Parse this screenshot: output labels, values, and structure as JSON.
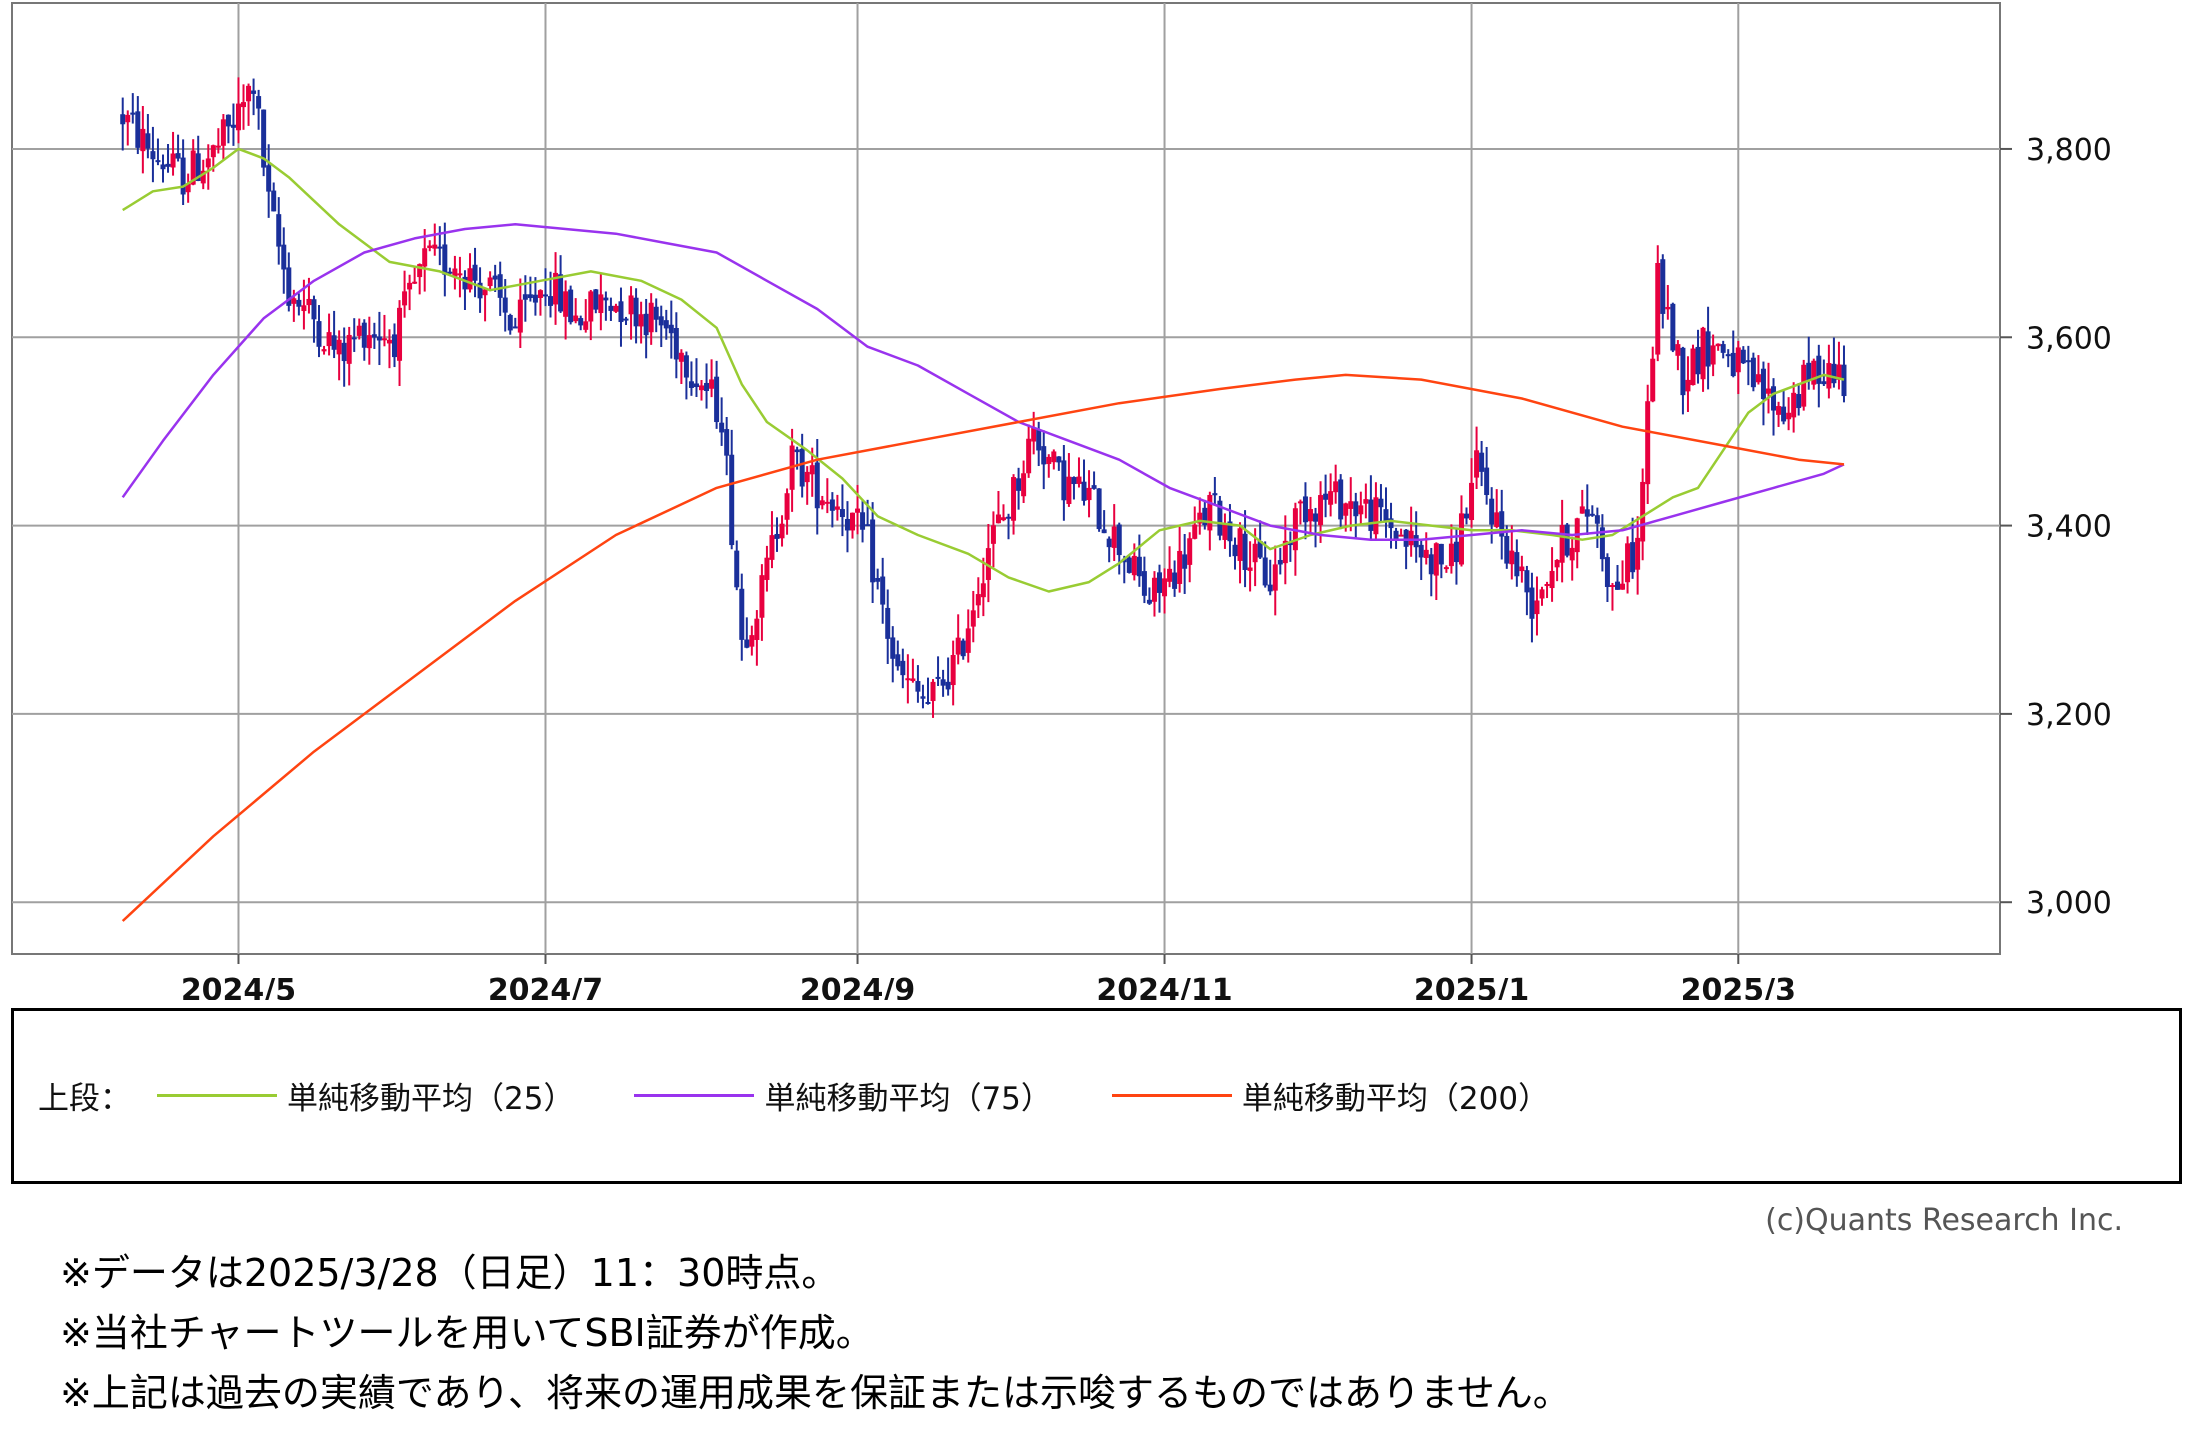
{
  "chart_data": {
    "type": "candlestick",
    "x_ticks": [
      "2024/5",
      "2024/7",
      "2024/9",
      "2024/11",
      "2025/1",
      "2025/3"
    ],
    "x_tick_days": [
      45,
      106,
      168,
      229,
      290,
      343
    ],
    "y_ticks": [
      "3,000",
      "3,200",
      "3,400",
      "3,600",
      "3,800"
    ],
    "y_tick_values": [
      3000,
      3200,
      3400,
      3600,
      3800
    ],
    "ylim": [
      2945,
      3955
    ],
    "xlim": [
      0,
      395
    ],
    "grid": true,
    "colors": {
      "up": "#e8003f",
      "down": "#1a2f9a",
      "ma25": "#99cc33",
      "ma75": "#9933ee",
      "ma200": "#ff4411",
      "grid": "#a0a0a0"
    },
    "candles_anchor": [
      [
        22,
        3835
      ],
      [
        28,
        3795
      ],
      [
        34,
        3770
      ],
      [
        40,
        3795
      ],
      [
        45,
        3835
      ],
      [
        48,
        3870
      ],
      [
        51,
        3740
      ],
      [
        55,
        3650
      ],
      [
        60,
        3620
      ],
      [
        65,
        3580
      ],
      [
        70,
        3610
      ],
      [
        76,
        3600
      ],
      [
        82,
        3680
      ],
      [
        88,
        3680
      ],
      [
        95,
        3650
      ],
      [
        100,
        3610
      ],
      [
        106,
        3660
      ],
      [
        112,
        3620
      ],
      [
        118,
        3640
      ],
      [
        124,
        3630
      ],
      [
        130,
        3610
      ],
      [
        136,
        3560
      ],
      [
        141,
        3520
      ],
      [
        145,
        3280
      ],
      [
        149,
        3330
      ],
      [
        155,
        3470
      ],
      [
        160,
        3440
      ],
      [
        165,
        3420
      ],
      [
        170,
        3380
      ],
      [
        176,
        3240
      ],
      [
        182,
        3210
      ],
      [
        188,
        3260
      ],
      [
        194,
        3380
      ],
      [
        198,
        3420
      ],
      [
        203,
        3500
      ],
      [
        208,
        3450
      ],
      [
        214,
        3430
      ],
      [
        220,
        3380
      ],
      [
        226,
        3320
      ],
      [
        232,
        3360
      ],
      [
        238,
        3420
      ],
      [
        244,
        3380
      ],
      [
        250,
        3340
      ],
      [
        256,
        3420
      ],
      [
        262,
        3430
      ],
      [
        268,
        3420
      ],
      [
        274,
        3400
      ],
      [
        280,
        3370
      ],
      [
        286,
        3360
      ],
      [
        291,
        3460
      ],
      [
        296,
        3390
      ],
      [
        302,
        3320
      ],
      [
        308,
        3380
      ],
      [
        314,
        3420
      ],
      [
        318,
        3330
      ],
      [
        323,
        3380
      ],
      [
        327,
        3660
      ],
      [
        332,
        3560
      ],
      [
        336,
        3590
      ],
      [
        340,
        3590
      ],
      [
        344,
        3560
      ],
      [
        348,
        3540
      ],
      [
        352,
        3520
      ],
      [
        356,
        3550
      ],
      [
        360,
        3570
      ],
      [
        364,
        3560
      ]
    ],
    "series": [
      {
        "name": "単純移動平均（25）",
        "points": [
          [
            22,
            3735
          ],
          [
            28,
            3755
          ],
          [
            34,
            3760
          ],
          [
            40,
            3780
          ],
          [
            45,
            3800
          ],
          [
            50,
            3790
          ],
          [
            55,
            3770
          ],
          [
            65,
            3720
          ],
          [
            75,
            3680
          ],
          [
            85,
            3670
          ],
          [
            95,
            3650
          ],
          [
            105,
            3660
          ],
          [
            115,
            3670
          ],
          [
            125,
            3660
          ],
          [
            133,
            3640
          ],
          [
            140,
            3610
          ],
          [
            145,
            3550
          ],
          [
            150,
            3510
          ],
          [
            158,
            3480
          ],
          [
            165,
            3450
          ],
          [
            172,
            3410
          ],
          [
            180,
            3390
          ],
          [
            190,
            3370
          ],
          [
            198,
            3345
          ],
          [
            206,
            3330
          ],
          [
            214,
            3340
          ],
          [
            220,
            3360
          ],
          [
            228,
            3395
          ],
          [
            236,
            3405
          ],
          [
            244,
            3400
          ],
          [
            250,
            3375
          ],
          [
            258,
            3390
          ],
          [
            266,
            3400
          ],
          [
            274,
            3405
          ],
          [
            282,
            3400
          ],
          [
            290,
            3395
          ],
          [
            298,
            3395
          ],
          [
            306,
            3390
          ],
          [
            312,
            3385
          ],
          [
            318,
            3390
          ],
          [
            324,
            3410
          ],
          [
            330,
            3430
          ],
          [
            335,
            3440
          ],
          [
            340,
            3480
          ],
          [
            345,
            3520
          ],
          [
            350,
            3540
          ],
          [
            355,
            3550
          ],
          [
            360,
            3560
          ],
          [
            364,
            3555
          ]
        ]
      },
      {
        "name": "単純移動平均（75）",
        "points": [
          [
            22,
            3430
          ],
          [
            30,
            3490
          ],
          [
            40,
            3560
          ],
          [
            50,
            3620
          ],
          [
            60,
            3660
          ],
          [
            70,
            3690
          ],
          [
            80,
            3705
          ],
          [
            90,
            3715
          ],
          [
            100,
            3720
          ],
          [
            110,
            3715
          ],
          [
            120,
            3710
          ],
          [
            130,
            3700
          ],
          [
            140,
            3690
          ],
          [
            150,
            3660
          ],
          [
            160,
            3630
          ],
          [
            170,
            3590
          ],
          [
            180,
            3570
          ],
          [
            190,
            3540
          ],
          [
            200,
            3510
          ],
          [
            210,
            3490
          ],
          [
            220,
            3470
          ],
          [
            230,
            3440
          ],
          [
            240,
            3420
          ],
          [
            250,
            3400
          ],
          [
            260,
            3390
          ],
          [
            270,
            3385
          ],
          [
            280,
            3385
          ],
          [
            290,
            3390
          ],
          [
            300,
            3395
          ],
          [
            310,
            3390
          ],
          [
            320,
            3395
          ],
          [
            330,
            3410
          ],
          [
            340,
            3425
          ],
          [
            350,
            3440
          ],
          [
            360,
            3455
          ],
          [
            364,
            3465
          ]
        ]
      },
      {
        "name": "単純移動平均（200）",
        "points": [
          [
            22,
            2980
          ],
          [
            40,
            3070
          ],
          [
            60,
            3160
          ],
          [
            80,
            3240
          ],
          [
            100,
            3320
          ],
          [
            120,
            3390
          ],
          [
            140,
            3440
          ],
          [
            160,
            3470
          ],
          [
            180,
            3490
          ],
          [
            200,
            3510
          ],
          [
            220,
            3530
          ],
          [
            240,
            3545
          ],
          [
            255,
            3555
          ],
          [
            265,
            3560
          ],
          [
            280,
            3555
          ],
          [
            300,
            3535
          ],
          [
            320,
            3505
          ],
          [
            340,
            3485
          ],
          [
            355,
            3470
          ],
          [
            364,
            3465
          ]
        ]
      }
    ]
  },
  "legend": {
    "prefix": "上段：",
    "items": [
      {
        "label": "単純移動平均（25）",
        "color": "#99cc33"
      },
      {
        "label": "単純移動平均（75）",
        "color": "#9933ee"
      },
      {
        "label": "単純移動平均（200）",
        "color": "#ff4411"
      }
    ]
  },
  "credit": "(c)Quants Research Inc.",
  "notes": [
    "※データは2025/3/28（日足）11：30時点。",
    "※当社チャートツールを用いてSBI証券が作成。",
    "※上記は過去の実績であり、将来の運用成果を保証または示唆するものではありません。"
  ]
}
